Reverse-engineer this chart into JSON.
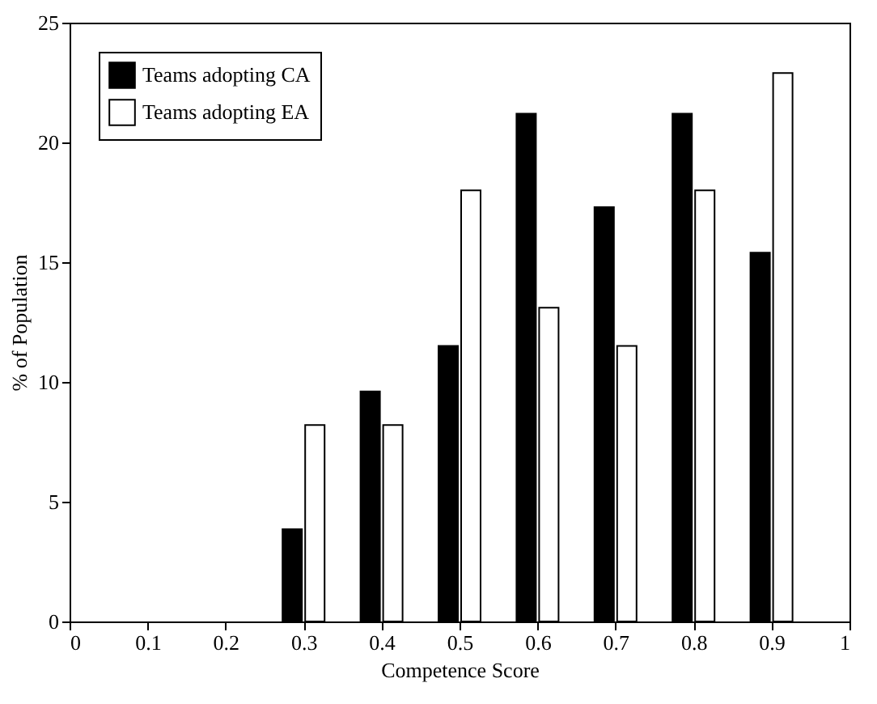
{
  "chart_data": {
    "type": "bar",
    "xlabel": "Competence Score",
    "ylabel": "% of Population",
    "x": [
      0.3,
      0.4,
      0.5,
      0.6,
      0.7,
      0.8,
      0.9
    ],
    "series": [
      {
        "name": "Teams adopting CA",
        "color": "#000000",
        "values": [
          3.85,
          9.6,
          11.5,
          21.2,
          17.3,
          21.2,
          15.4
        ]
      },
      {
        "name": "Teams adopting EA",
        "color": "#ffffff",
        "values": [
          8.2,
          8.2,
          18.0,
          13.1,
          11.5,
          18.0,
          22.9
        ]
      }
    ],
    "xlim": [
      0,
      1
    ],
    "xticks": [
      0,
      0.1,
      0.2,
      0.3,
      0.4,
      0.5,
      0.6,
      0.7,
      0.8,
      0.9,
      1
    ],
    "ylim": [
      0,
      25
    ],
    "yticks": [
      0,
      5,
      10,
      15,
      20,
      25
    ],
    "grid": false,
    "legend": "top left"
  }
}
